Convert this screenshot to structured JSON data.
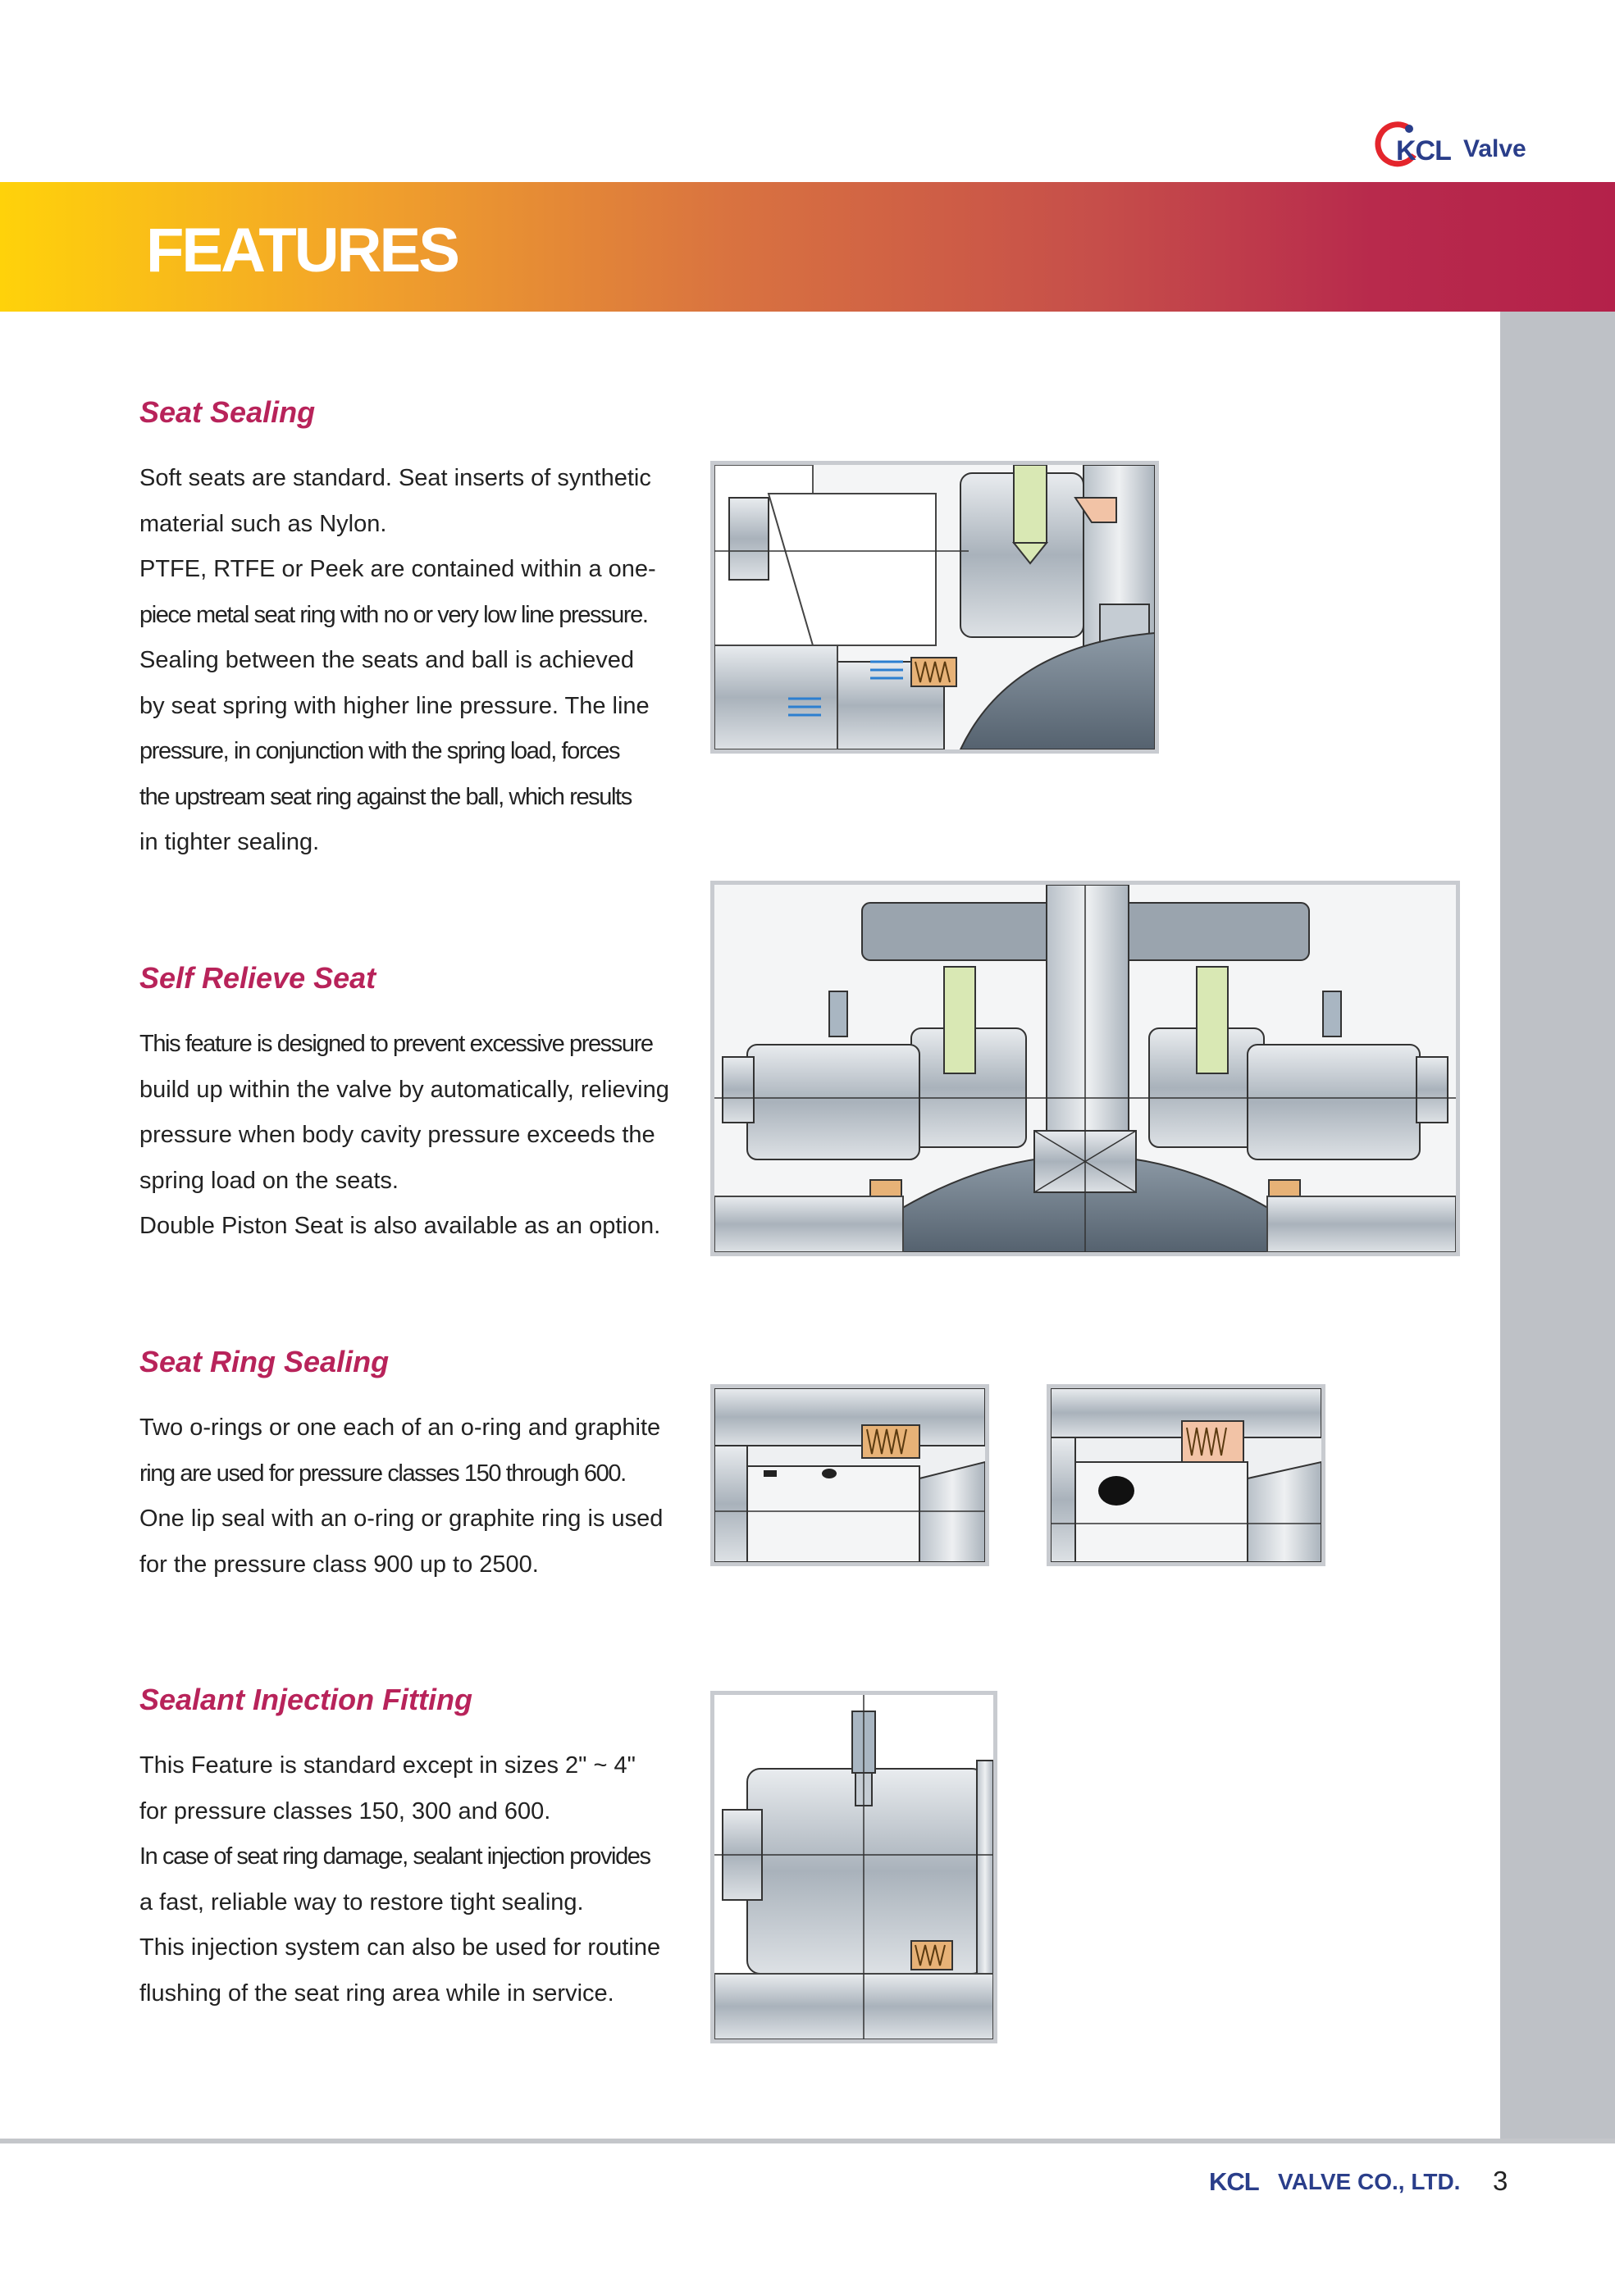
{
  "header": {
    "logo_kcl": "KCL",
    "logo_valve": "Valve",
    "colors": {
      "brand_blue": "#2a3e8a",
      "brand_red": "#e4252c",
      "banner_start": "#ffd20a",
      "banner_end": "#b4214a",
      "heading": "#b8235a"
    }
  },
  "banner": {
    "title": "FEATURES"
  },
  "sections": {
    "seat_sealing": {
      "heading": "Seat Sealing",
      "lines": [
        "Soft seats are standard. Seat inserts of synthetic",
        "material such as Nylon.",
        "PTFE, RTFE or Peek are contained within a one-",
        "piece metal seat ring with no or very low line pressure.",
        "Sealing between the seats and ball is achieved",
        "by seat spring with higher line pressure. The line",
        "pressure, in conjunction with the spring load, forces",
        "the upstream seat ring against the ball, which results",
        "in tighter sealing."
      ]
    },
    "self_relieve_seat": {
      "heading": "Self Relieve Seat",
      "lines": [
        "This feature is designed to prevent excessive pressure",
        "build up within the valve by automatically, relieving",
        "pressure when body cavity pressure exceeds the",
        "spring load on the seats.",
        "Double Piston Seat is also available as an option."
      ]
    },
    "seat_ring_sealing": {
      "heading": "Seat Ring Sealing",
      "lines": [
        "Two o-rings or one each of an o-ring and graphite",
        "ring are used for pressure classes 150 through 600.",
        "One lip seal with an o-ring or graphite ring is used",
        "for the pressure class 900 up to 2500."
      ]
    },
    "sealant_injection_fitting": {
      "heading": "Sealant Injection Fitting",
      "lines": [
        "This Feature is standard except in sizes 2\" ~ 4\"",
        "for pressure classes 150, 300 and 600.",
        "In case of seat ring damage, sealant injection provides",
        "a fast, reliable way to restore tight sealing.",
        "This injection system can also be used for routine",
        "flushing of the seat ring area while in service."
      ]
    }
  },
  "footer": {
    "kcl": "KCL",
    "company": "VALVE CO., LTD.",
    "page_number": "3"
  }
}
